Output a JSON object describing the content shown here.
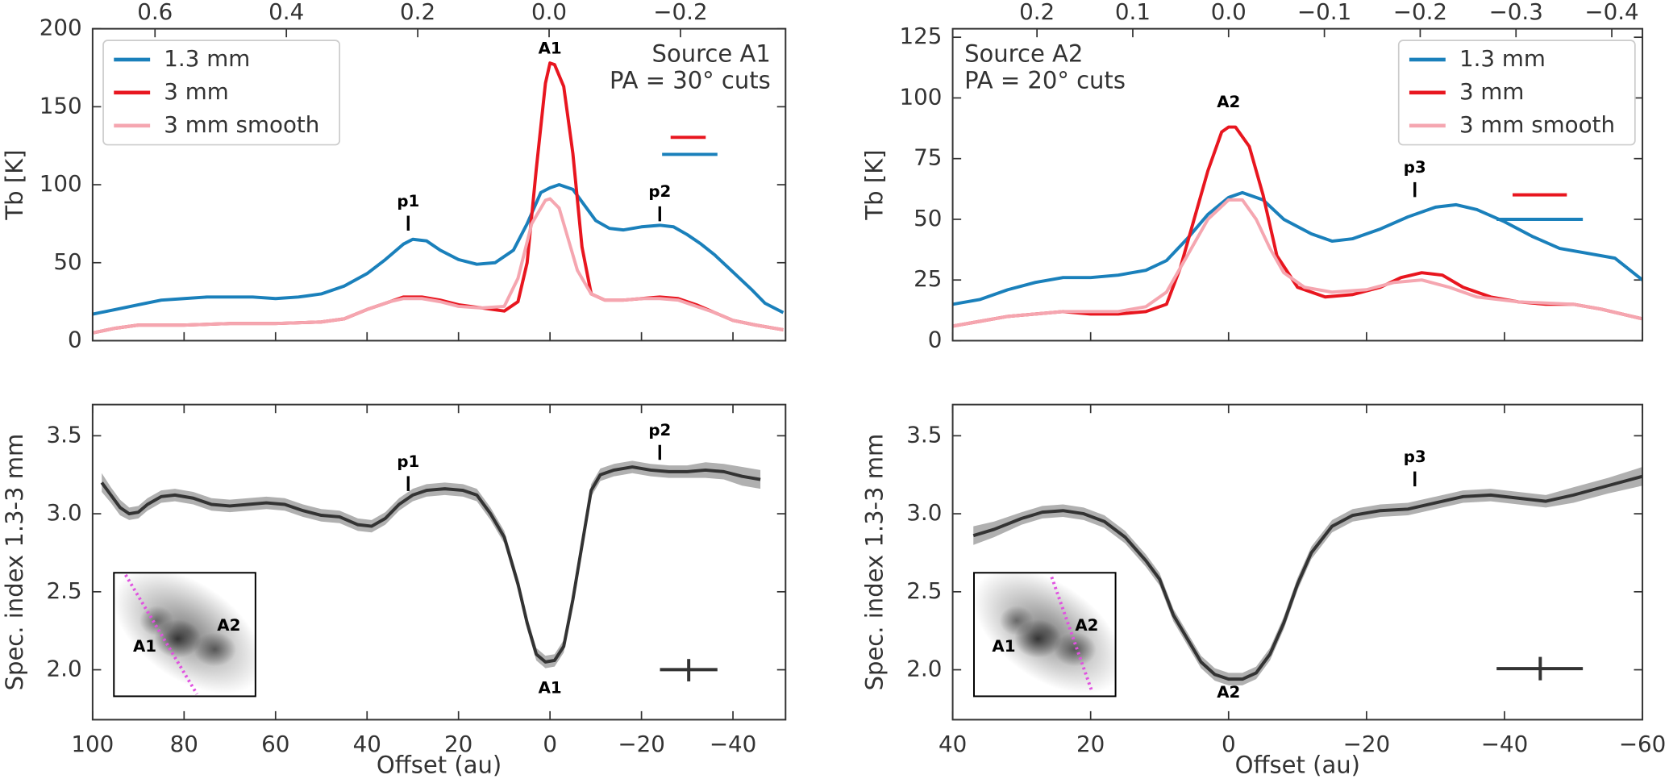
{
  "chart_data": [
    {
      "type": "line",
      "ylabel": "Tb [K]",
      "legend": "upper left",
      "note": [
        "Source A1",
        "PA = 30° cuts"
      ],
      "xlim": [
        100,
        -51.5
      ],
      "xticks": [
        100,
        80,
        60,
        40,
        20,
        0,
        -20,
        -40
      ],
      "x2lim": [
        0.695,
        -0.36
      ],
      "x2ticks": [
        0.6,
        0.4,
        0.2,
        {
          "value": 0,
          "label": "0.0"
        },
        {
          "value": -0.2,
          "label": "−0.2"
        }
      ],
      "ylim": [
        0,
        200
      ],
      "yticks": [
        0,
        50,
        100,
        150,
        200
      ],
      "series": [
        {
          "name": "1.3 mm",
          "color": "#1a80bb",
          "x": [
            100,
            95,
            90,
            85,
            80,
            75,
            70,
            65,
            60,
            55,
            50,
            45,
            40,
            36,
            32,
            30,
            27,
            24,
            20,
            16,
            12,
            8,
            5,
            2,
            0,
            -2,
            -5,
            -8,
            -10,
            -13,
            -16,
            -20,
            -24,
            -27,
            -30,
            -33,
            -36,
            -40,
            -44,
            -47,
            -51
          ],
          "values": [
            17,
            20,
            23,
            26,
            27,
            28,
            28,
            28,
            27,
            28,
            30,
            35,
            43,
            52,
            62,
            65,
            64,
            58,
            52,
            49,
            50,
            58,
            75,
            95,
            98,
            100,
            97,
            85,
            77,
            72,
            71,
            73,
            74,
            73,
            68,
            62,
            55,
            44,
            33,
            24,
            18
          ]
        },
        {
          "name": "3 mm",
          "color": "#e8161f",
          "x": [
            100,
            95,
            90,
            80,
            70,
            60,
            50,
            45,
            40,
            35,
            32,
            28,
            24,
            20,
            15,
            10,
            7,
            5,
            3,
            1,
            0,
            -1,
            -3,
            -5,
            -7,
            -9,
            -12,
            -16,
            -20,
            -24,
            -28,
            -32,
            -36,
            -40,
            -45,
            -51
          ],
          "values": [
            5,
            8,
            10,
            10,
            11,
            11,
            12,
            14,
            20,
            25,
            28,
            28,
            26,
            23,
            21,
            19,
            25,
            50,
            110,
            165,
            178,
            177,
            163,
            120,
            60,
            30,
            26,
            26,
            27,
            28,
            27,
            23,
            18,
            13,
            10,
            7
          ]
        },
        {
          "name": "3 mm smooth",
          "color": "#f5a6b0",
          "x": [
            100,
            95,
            90,
            80,
            70,
            60,
            50,
            45,
            40,
            35,
            32,
            28,
            24,
            20,
            15,
            10,
            7,
            4,
            1,
            0,
            -2,
            -4,
            -6,
            -9,
            -12,
            -16,
            -20,
            -24,
            -28,
            -32,
            -36,
            -40,
            -45,
            -51
          ],
          "values": [
            5,
            8,
            10,
            10,
            11,
            11,
            12,
            14,
            20,
            25,
            27,
            27,
            25,
            22,
            21,
            22,
            40,
            75,
            90,
            91,
            85,
            65,
            45,
            30,
            26,
            26,
            27,
            27,
            26,
            22,
            18,
            13,
            10,
            7
          ]
        }
      ],
      "annotations": [
        {
          "text": "A1",
          "x": 0,
          "y": 187
        },
        {
          "text": "p1",
          "x": 31,
          "y": 89
        },
        {
          "text": "p2",
          "x": -24,
          "y": 95
        }
      ]
    },
    {
      "type": "line",
      "ylabel": "Tb [K]",
      "legend": "upper right",
      "note": [
        "Source A2",
        "PA = 20° cuts"
      ],
      "xlim": [
        40,
        -60
      ],
      "xticks": [
        40,
        20,
        0,
        -20,
        -40,
        -60
      ],
      "x2lim": [
        0.288,
        -0.432
      ],
      "x2ticks": [
        0.2,
        0.1,
        {
          "value": 0,
          "label": "0.0"
        },
        {
          "value": -0.1,
          "label": "−0.1"
        },
        {
          "value": -0.2,
          "label": "−0.2"
        },
        {
          "value": -0.3,
          "label": "−0.3"
        },
        {
          "value": -0.4,
          "label": "−0.4"
        }
      ],
      "ylim": [
        0,
        128.5
      ],
      "yticks": [
        0,
        25,
        50,
        75,
        100,
        125
      ],
      "series": [
        {
          "name": "1.3 mm",
          "color": "#1a80bb",
          "x": [
            40,
            36,
            32,
            28,
            24,
            20,
            16,
            12,
            9,
            6,
            3,
            0,
            -2,
            -5,
            -8,
            -12,
            -15,
            -18,
            -22,
            -26,
            -30,
            -33,
            -36,
            -40,
            -44,
            -48,
            -52,
            -56,
            -60
          ],
          "values": [
            15,
            17,
            21,
            24,
            26,
            26,
            27,
            29,
            33,
            42,
            52,
            59,
            61,
            58,
            50,
            44,
            41,
            42,
            46,
            51,
            55,
            56,
            54,
            49,
            43,
            38,
            36,
            34,
            25
          ]
        },
        {
          "name": "3 mm",
          "color": "#e8161f",
          "x": [
            40,
            36,
            32,
            28,
            24,
            20,
            16,
            12,
            9,
            7,
            5,
            3,
            1,
            0,
            -1,
            -3,
            -5,
            -7,
            -10,
            -14,
            -18,
            -22,
            -25,
            -28,
            -31,
            -34,
            -38,
            -42,
            -46,
            -50,
            -54,
            -60
          ],
          "values": [
            6,
            8,
            10,
            11,
            12,
            11,
            11,
            12,
            15,
            30,
            50,
            70,
            86,
            88,
            88,
            80,
            60,
            35,
            22,
            18,
            19,
            22,
            26,
            28,
            27,
            22,
            18,
            16,
            15,
            15,
            13,
            9
          ]
        },
        {
          "name": "3 mm smooth",
          "color": "#f5a6b0",
          "x": [
            40,
            32,
            24,
            16,
            12,
            9,
            6,
            3,
            0,
            -2,
            -4,
            -6,
            -8,
            -11,
            -15,
            -20,
            -24,
            -28,
            -32,
            -36,
            -42,
            -50,
            -54,
            -60
          ],
          "values": [
            6,
            10,
            12,
            12,
            14,
            20,
            35,
            50,
            58,
            58,
            50,
            38,
            28,
            22,
            20,
            21,
            24,
            25,
            22,
            18,
            16,
            15,
            13,
            9
          ]
        }
      ],
      "annotations": [
        {
          "text": "A2",
          "x": 0,
          "y": 98
        },
        {
          "text": "p3",
          "x": -27,
          "y": 71
        }
      ]
    },
    {
      "type": "line",
      "ylabel": "Spec. index 1.3-3 mm",
      "xlabel": "Offset (au)",
      "xlim": [
        100,
        -51.5
      ],
      "xticks": [
        100,
        80,
        60,
        40,
        20,
        0,
        {
          "value": -20,
          "label": "−20"
        },
        {
          "value": -40,
          "label": "−40"
        }
      ],
      "ylim": [
        1.68,
        3.7
      ],
      "yticks": [
        {
          "value": 2,
          "label": "2.0"
        },
        2.5,
        {
          "value": 3,
          "label": "3.0"
        },
        3.5
      ],
      "series": [
        {
          "color": "#333333",
          "band_color": "#b0b0b0",
          "x": [
            98,
            96,
            94,
            92,
            90,
            88,
            85,
            82,
            78,
            74,
            70,
            66,
            62,
            58,
            54,
            50,
            46,
            42,
            39,
            36,
            33,
            30,
            27,
            23,
            19,
            16,
            13,
            10,
            7,
            5,
            3,
            1,
            -1,
            -3,
            -5,
            -7,
            -9,
            -11,
            -14,
            -18,
            -22,
            -26,
            -30,
            -34,
            -38,
            -42,
            -46
          ],
          "values": [
            3.2,
            3.12,
            3.04,
            3.0,
            3.01,
            3.06,
            3.11,
            3.12,
            3.1,
            3.06,
            3.05,
            3.06,
            3.07,
            3.06,
            3.02,
            2.99,
            2.98,
            2.93,
            2.92,
            2.97,
            3.06,
            3.12,
            3.15,
            3.16,
            3.15,
            3.12,
            3.0,
            2.85,
            2.55,
            2.3,
            2.1,
            2.05,
            2.06,
            2.15,
            2.45,
            2.8,
            3.15,
            3.25,
            3.28,
            3.3,
            3.28,
            3.27,
            3.27,
            3.28,
            3.27,
            3.24,
            3.22
          ],
          "errors": [
            0.06,
            0.05,
            0.05,
            0.04,
            0.04,
            0.04,
            0.04,
            0.04,
            0.04,
            0.04,
            0.04,
            0.04,
            0.04,
            0.04,
            0.04,
            0.04,
            0.04,
            0.04,
            0.04,
            0.04,
            0.04,
            0.04,
            0.04,
            0.04,
            0.04,
            0.04,
            0.04,
            0.04,
            0.04,
            0.04,
            0.04,
            0.04,
            0.04,
            0.04,
            0.04,
            0.04,
            0.04,
            0.04,
            0.04,
            0.04,
            0.04,
            0.04,
            0.04,
            0.05,
            0.05,
            0.06,
            0.06
          ]
        }
      ],
      "annotations": [
        {
          "text": "p1",
          "x": 31,
          "y": 3.33
        },
        {
          "text": "p2",
          "x": -24,
          "y": 3.53
        },
        {
          "text": "A1",
          "x": 0,
          "y": 1.88
        }
      ],
      "inset_labels": [
        "A1",
        "A2"
      ]
    },
    {
      "type": "line",
      "ylabel": "Spec. index 1.3-3 mm",
      "xlabel": "Offset (au)",
      "xlim": [
        40,
        -60
      ],
      "xticks": [
        40,
        20,
        0,
        {
          "value": -20,
          "label": "−20"
        },
        {
          "value": -40,
          "label": "−40"
        },
        {
          "value": -60,
          "label": "−60"
        }
      ],
      "ylim": [
        1.68,
        3.7
      ],
      "yticks": [
        {
          "value": 2,
          "label": "2.0"
        },
        2.5,
        {
          "value": 3,
          "label": "3.0"
        },
        3.5
      ],
      "series": [
        {
          "color": "#333333",
          "band_color": "#b0b0b0",
          "x": [
            37,
            34,
            30,
            27,
            24,
            21,
            18,
            15,
            12,
            10,
            8,
            6,
            4,
            2,
            0,
            -2,
            -4,
            -6,
            -8,
            -10,
            -12,
            -15,
            -18,
            -22,
            -26,
            -30,
            -34,
            -38,
            -42,
            -46,
            -50,
            -55,
            -60
          ],
          "values": [
            2.86,
            2.9,
            2.97,
            3.01,
            3.02,
            3.0,
            2.95,
            2.85,
            2.7,
            2.58,
            2.35,
            2.2,
            2.05,
            1.97,
            1.94,
            1.94,
            1.98,
            2.1,
            2.3,
            2.55,
            2.75,
            2.92,
            2.99,
            3.02,
            3.03,
            3.07,
            3.11,
            3.12,
            3.1,
            3.08,
            3.12,
            3.18,
            3.24
          ],
          "errors": [
            0.06,
            0.05,
            0.04,
            0.04,
            0.04,
            0.04,
            0.04,
            0.04,
            0.04,
            0.04,
            0.04,
            0.04,
            0.04,
            0.04,
            0.04,
            0.04,
            0.04,
            0.04,
            0.04,
            0.04,
            0.04,
            0.04,
            0.04,
            0.04,
            0.04,
            0.04,
            0.04,
            0.04,
            0.04,
            0.04,
            0.05,
            0.05,
            0.06
          ]
        }
      ],
      "annotations": [
        {
          "text": "p3",
          "x": -27,
          "y": 3.36
        },
        {
          "text": "A2",
          "x": 0,
          "y": 1.85
        }
      ],
      "inset_labels": [
        "A1",
        "A2"
      ]
    }
  ]
}
